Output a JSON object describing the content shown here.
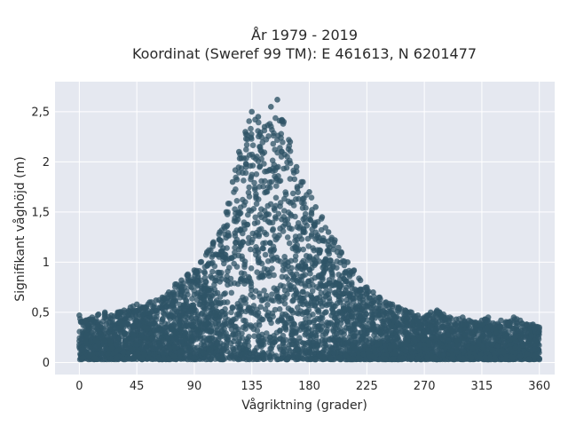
{
  "chart_data": {
    "type": "scatter",
    "title_line1": "År 1979 - 2019",
    "title_line2": "Koordinat (Sweref 99 TM): E 461613, N 6201477",
    "xlabel": "Vågriktning (grader)",
    "ylabel": "Signifikant våghöjd (m)",
    "xlim": [
      -19,
      372
    ],
    "ylim": [
      -0.12,
      2.8
    ],
    "x_ticks": [
      0,
      45,
      90,
      135,
      180,
      225,
      270,
      315,
      360
    ],
    "x_tick_labels": [
      "0",
      "45",
      "90",
      "135",
      "180",
      "225",
      "270",
      "315",
      "360"
    ],
    "y_ticks": [
      0,
      0.5,
      1,
      1.5,
      2,
      2.5
    ],
    "y_tick_labels": [
      "0",
      "0,5",
      "1",
      "1,5",
      "2",
      "2,5"
    ],
    "grid": true,
    "point_color": "#2f5467",
    "plot_background": "#e5e8f0",
    "series": [
      {
        "x": [
          0,
          5,
          10,
          15,
          20,
          25,
          30,
          35,
          40,
          45,
          50,
          55,
          60,
          65,
          70,
          75,
          80,
          85,
          90,
          95,
          100,
          105,
          110,
          115,
          120,
          125,
          130,
          135,
          140,
          145,
          150,
          155,
          160,
          165,
          170,
          175,
          180,
          185,
          190,
          195,
          200,
          205,
          210,
          215,
          220,
          225,
          230,
          235,
          240,
          245,
          250,
          255,
          260,
          265,
          270,
          275,
          280,
          285,
          290,
          295,
          300,
          305,
          310,
          315,
          320,
          325,
          330,
          335,
          340,
          345,
          350,
          355,
          360
        ],
        "y": [
          0.47,
          0.42,
          0.45,
          0.48,
          0.5,
          0.47,
          0.5,
          0.52,
          0.55,
          0.58,
          0.55,
          0.6,
          0.62,
          0.65,
          0.7,
          0.78,
          0.82,
          0.88,
          0.92,
          1.0,
          1.1,
          1.2,
          1.3,
          1.5,
          1.8,
          2.1,
          2.3,
          2.5,
          2.45,
          2.35,
          2.55,
          2.62,
          2.4,
          2.2,
          1.95,
          1.8,
          1.7,
          1.55,
          1.45,
          1.3,
          1.22,
          1.1,
          1.0,
          0.92,
          0.82,
          0.75,
          0.7,
          0.65,
          0.6,
          0.58,
          0.55,
          0.52,
          0.5,
          0.47,
          0.45,
          0.5,
          0.52,
          0.48,
          0.45,
          0.43,
          0.45,
          0.42,
          0.4,
          0.42,
          0.45,
          0.38,
          0.42,
          0.4,
          0.45,
          0.42,
          0.38,
          0.38,
          0.35
        ]
      }
    ]
  }
}
